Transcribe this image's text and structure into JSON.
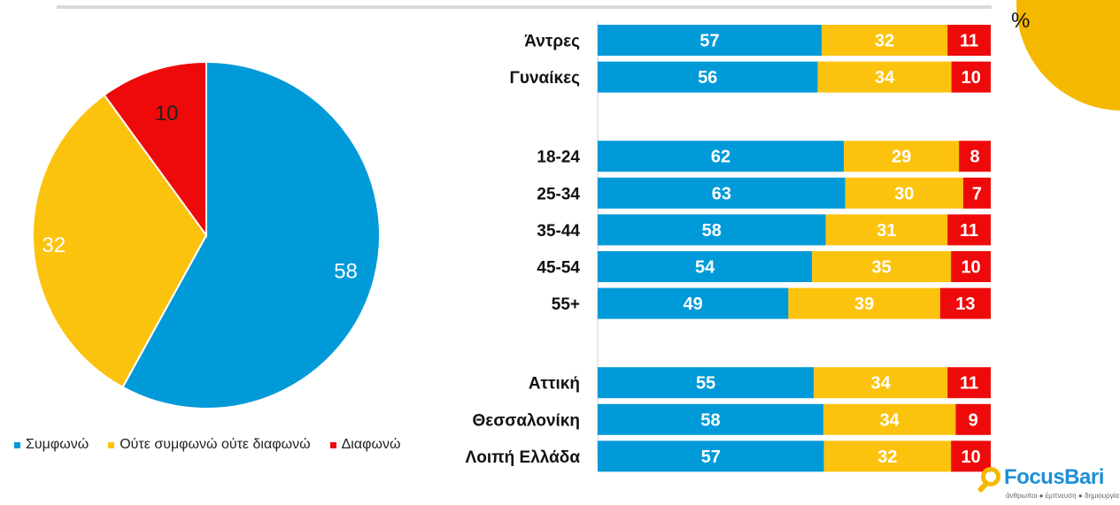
{
  "corner_label": "%",
  "colors": {
    "agree": "#009ad8",
    "neutral": "#fcc30e",
    "disagree": "#ee0a0a",
    "corner": "#f5b800"
  },
  "legend": [
    {
      "label": "Συμφωνώ",
      "color": "#009ad8"
    },
    {
      "label": "Ούτε συμφωνώ ούτε διαφωνώ",
      "color": "#fcc30e"
    },
    {
      "label": "Διαφωνώ",
      "color": "#ee0a0a"
    }
  ],
  "logo": {
    "name": "FocusBari",
    "tagline": "άνθρωποι ● έμπνευση ● δημιουργία"
  },
  "chart_data": [
    {
      "type": "pie",
      "slices": [
        {
          "label": "Συμφωνώ",
          "value": 58,
          "color": "#009ad8"
        },
        {
          "label": "Ούτε συμφωνώ ούτε διαφωνώ",
          "value": 32,
          "color": "#fcc30e"
        },
        {
          "label": "Διαφωνώ",
          "value": 10,
          "color": "#ee0a0a"
        }
      ]
    },
    {
      "type": "bar",
      "orientation": "horizontal",
      "stacked": true,
      "normalized": true,
      "categories": [
        "Άντρες",
        "Γυναίκες",
        "18-24",
        "25-34",
        "35-44",
        "45-54",
        "55+",
        "Αττική",
        "Θεσσαλονίκη",
        "Λοιπή Ελλάδα"
      ],
      "groups": [
        [
          "Άντρες",
          "Γυναίκες"
        ],
        [
          "18-24",
          "25-34",
          "35-44",
          "45-54",
          "55+"
        ],
        [
          "Αττική",
          "Θεσσαλονίκη",
          "Λοιπή Ελλάδα"
        ]
      ],
      "series": [
        {
          "name": "Συμφωνώ",
          "color": "#009ad8",
          "values": [
            57,
            56,
            62,
            63,
            58,
            54,
            49,
            55,
            58,
            57
          ]
        },
        {
          "name": "Ούτε συμφωνώ ούτε διαφωνώ",
          "color": "#fcc30e",
          "values": [
            32,
            34,
            29,
            30,
            31,
            35,
            39,
            34,
            34,
            32
          ]
        },
        {
          "name": "Διαφωνώ",
          "color": "#ee0a0a",
          "values": [
            11,
            10,
            8,
            7,
            11,
            10,
            13,
            11,
            9,
            10
          ]
        }
      ]
    }
  ]
}
